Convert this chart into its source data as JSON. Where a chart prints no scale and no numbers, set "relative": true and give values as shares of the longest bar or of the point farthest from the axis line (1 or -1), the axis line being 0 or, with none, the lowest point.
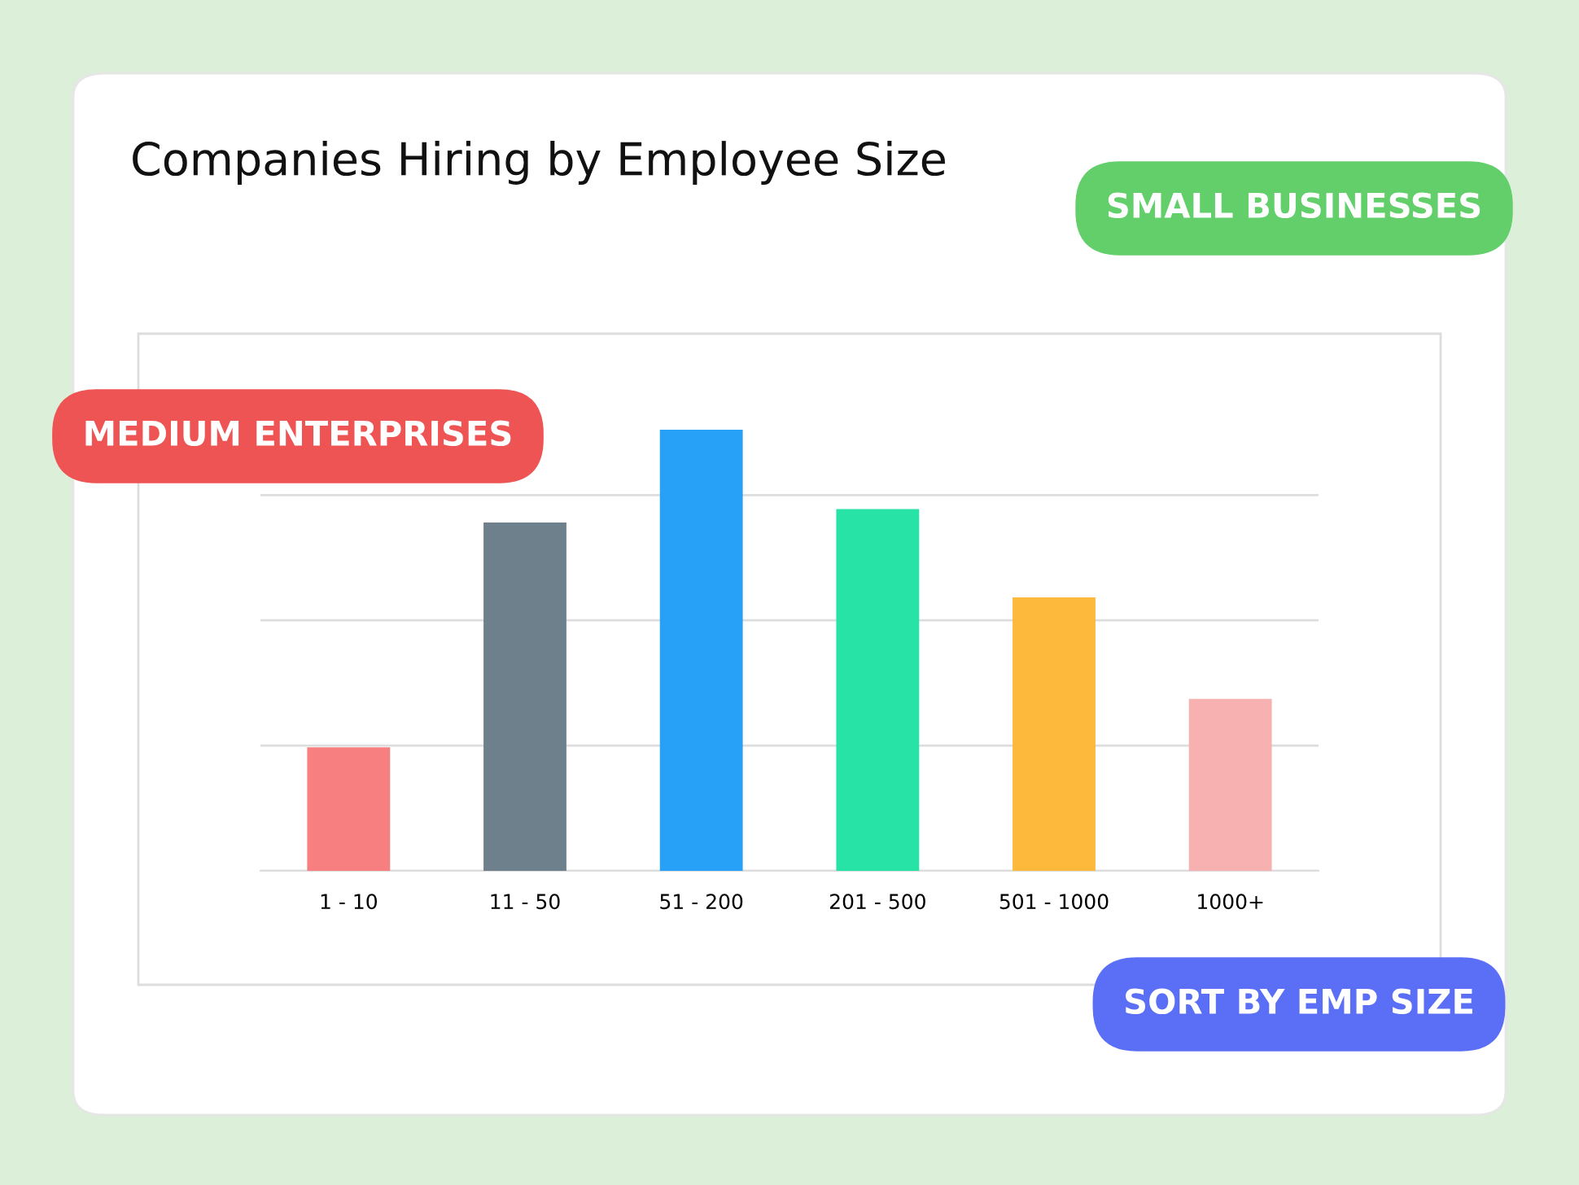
{
  "chart_data": {
    "type": "bar",
    "title": "Companies Hiring by Employee Size",
    "categories": [
      "1 - 10",
      "11 - 50",
      "51 - 200",
      "201 - 500",
      "501 - 1000",
      "1000+"
    ],
    "values": [
      0.28,
      0.79,
      1,
      0.82,
      0.62,
      0.39
    ],
    "colors": [
      "#f77f7f",
      "#6e808c",
      "#27a0f8",
      "#27e3a6",
      "#fcb93b",
      "#f8b1b1"
    ],
    "relative": true,
    "grid": "y",
    "annotations": [
      "SMALL BUSINESSES",
      "MEDIUM ENTERPRISES",
      "SORT BY EMP SIZE"
    ]
  }
}
